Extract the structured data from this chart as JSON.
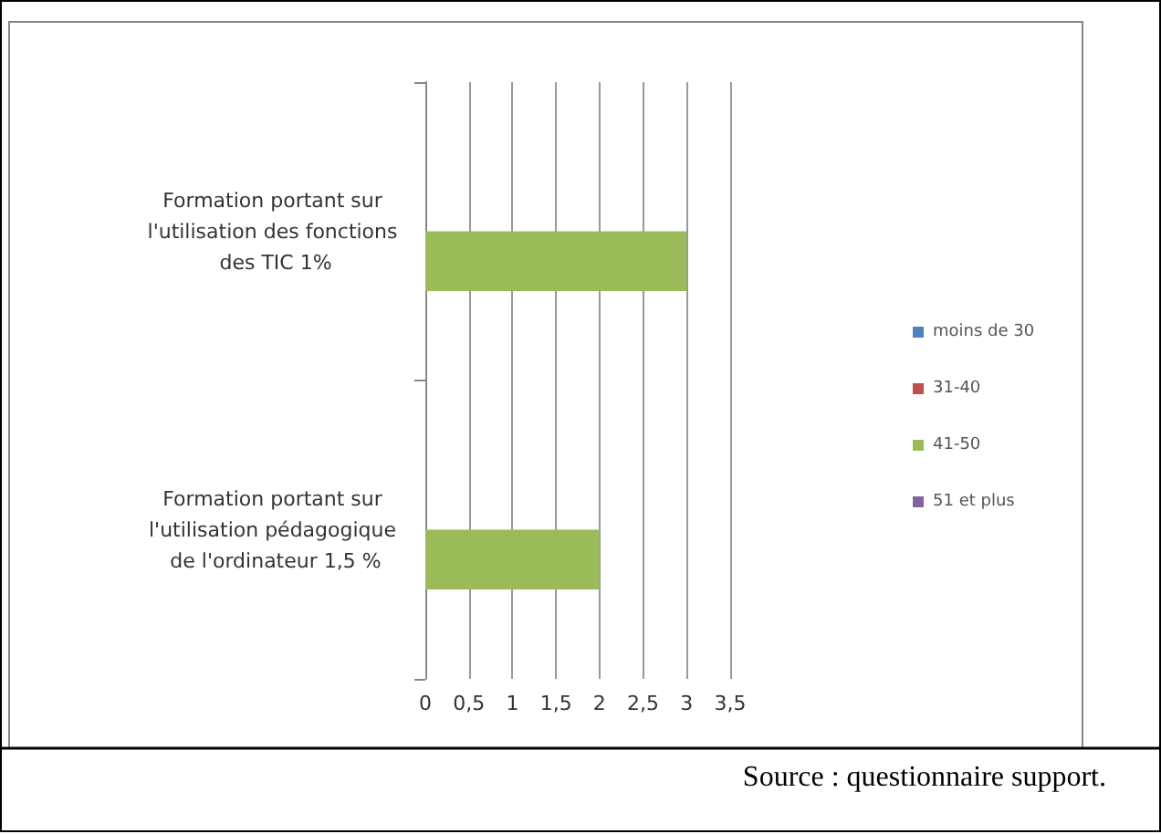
{
  "chart_data": {
    "type": "bar",
    "orientation": "horizontal",
    "categories": [
      "Formation portant sur l'utilisation des fonctions des TIC 1%",
      "Formation portant sur l'utilisation pédagogique de l'ordinateur 1,5 %"
    ],
    "series": [
      {
        "name": "moins de 30",
        "color": "#4f81bd",
        "values": [
          null,
          null
        ]
      },
      {
        "name": "31-40",
        "color": "#c0504d",
        "values": [
          null,
          null
        ]
      },
      {
        "name": "41-50",
        "color": "#9bbb59",
        "values": [
          3,
          2
        ]
      },
      {
        "name": "51 et plus",
        "color": "#8064a2",
        "values": [
          null,
          null
        ]
      }
    ],
    "xlim": [
      0,
      3.5
    ],
    "xticks": [
      0,
      {
        "value": 0.5,
        "label": "0,5"
      },
      1,
      {
        "value": 1.5,
        "label": "1,5"
      },
      2,
      {
        "value": 2.5,
        "label": "2,5"
      },
      3,
      {
        "value": 3.5,
        "label": "3,5"
      }
    ],
    "grid": "x",
    "legend": "right",
    "annotations": [
      "Source : questionnaire support."
    ]
  }
}
